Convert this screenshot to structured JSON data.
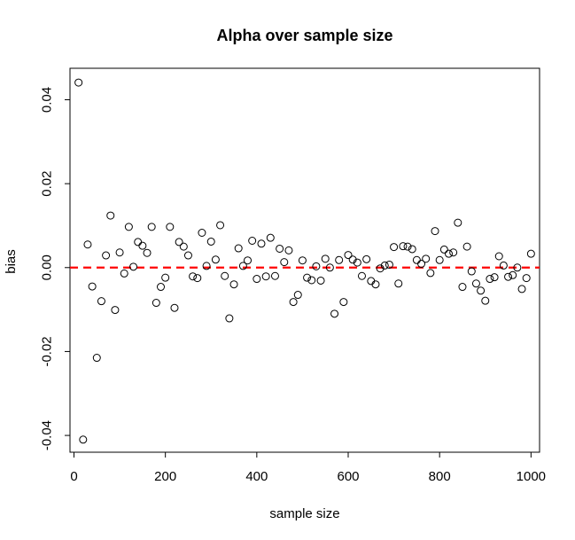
{
  "chart_data": {
    "type": "scatter",
    "title": "Alpha over sample size",
    "xlabel": "sample size",
    "ylabel": "bias",
    "xlim": [
      -8.7,
      1018.7
    ],
    "ylim": [
      -0.044,
      0.0475
    ],
    "x_ticks": [
      0,
      200,
      400,
      600,
      800,
      1000
    ],
    "x_tick_labels": [
      "0",
      "200",
      "400",
      "600",
      "800",
      "1000"
    ],
    "y_ticks": [
      -0.04,
      -0.02,
      0.0,
      0.02,
      0.04
    ],
    "y_tick_labels": [
      "-0.04",
      "-0.02",
      "0.00",
      "0.02",
      "0.04"
    ],
    "grid": false,
    "reference_line": {
      "y": 0,
      "color": "#ff0000",
      "style": "dashed"
    },
    "series": [
      {
        "marker": "open-circle",
        "color": "#000000",
        "x": [
          10,
          20,
          30,
          40,
          50,
          60,
          70,
          80,
          90,
          100,
          110,
          120,
          130,
          140,
          150,
          160,
          170,
          180,
          190,
          200,
          210,
          220,
          230,
          240,
          250,
          260,
          270,
          280,
          290,
          300,
          310,
          320,
          330,
          340,
          350,
          360,
          370,
          380,
          390,
          400,
          410,
          420,
          430,
          440,
          450,
          460,
          470,
          480,
          490,
          500,
          510,
          520,
          530,
          540,
          550,
          560,
          570,
          580,
          590,
          600,
          610,
          620,
          630,
          640,
          650,
          660,
          670,
          680,
          690,
          700,
          710,
          720,
          730,
          740,
          750,
          760,
          770,
          780,
          790,
          800,
          810,
          820,
          830,
          840,
          850,
          860,
          870,
          880,
          890,
          900,
          910,
          920,
          930,
          940,
          950,
          960,
          970,
          980,
          990,
          1000
        ],
        "y": [
          0.0441,
          -0.041,
          0.0055,
          -0.0045,
          -0.0215,
          -0.008,
          0.0029,
          0.0124,
          -0.0101,
          0.0036,
          -0.0014,
          0.0097,
          0.0002,
          0.0061,
          0.0052,
          0.0035,
          0.0097,
          -0.0084,
          -0.0046,
          -0.0024,
          0.0097,
          -0.0096,
          0.0061,
          0.005,
          0.0029,
          -0.0021,
          -0.0025,
          0.0083,
          0.0004,
          0.0062,
          0.0019,
          0.0101,
          -0.002,
          -0.0121,
          -0.004,
          0.0046,
          0.0004,
          0.0017,
          0.0064,
          -0.0027,
          0.0057,
          -0.0021,
          0.0071,
          -0.002,
          0.0045,
          0.0013,
          0.0041,
          -0.0082,
          -0.0065,
          0.0017,
          -0.0024,
          -0.003,
          0.0003,
          -0.0031,
          0.0021,
          0.0,
          -0.011,
          0.0018,
          -0.0082,
          0.003,
          0.0019,
          0.0012,
          -0.002,
          0.002,
          -0.0032,
          -0.004,
          -0.0002,
          0.0005,
          0.0007,
          0.0049,
          -0.0038,
          0.0051,
          0.005,
          0.0044,
          0.0018,
          0.0009,
          0.0021,
          -0.0013,
          0.0087,
          0.0018,
          0.0043,
          0.0033,
          0.0036,
          0.0107,
          -0.0046,
          0.005,
          -0.0009,
          -0.0038,
          -0.0055,
          -0.0079,
          -0.0027,
          -0.0023,
          0.0027,
          0.0005,
          -0.0022,
          -0.0018,
          0.0,
          -0.0051,
          -0.0025,
          0.0033
        ]
      }
    ]
  }
}
